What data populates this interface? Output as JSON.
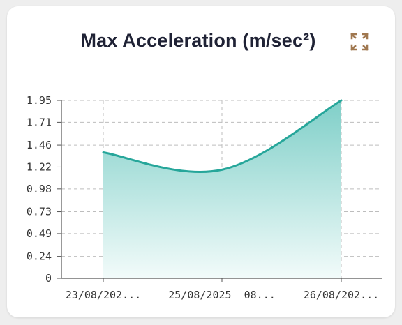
{
  "card": {
    "title": "Max Acceleration (m/sec²)",
    "expand_icon": "expand-icon"
  },
  "colors": {
    "line": "#26a69a",
    "area_top": "#7fcfc8",
    "area_bottom": "#f2fbfa",
    "grid": "#bdbdbd",
    "axis": "#555555",
    "icon": "#a07850"
  },
  "chart_data": {
    "type": "area",
    "title": "Max Acceleration (m/sec²)",
    "xlabel": "",
    "ylabel": "",
    "categories": [
      "23/08/202...",
      "25/08/2025  08...",
      "26/08/202..."
    ],
    "values": [
      1.38,
      1.19,
      1.95
    ],
    "y_ticks": [
      "0",
      "0.24",
      "0.49",
      "0.73",
      "0.98",
      "1.22",
      "1.46",
      "1.71",
      "1.95"
    ],
    "ylim": [
      0,
      1.95
    ],
    "grid": true,
    "legend": "none"
  }
}
